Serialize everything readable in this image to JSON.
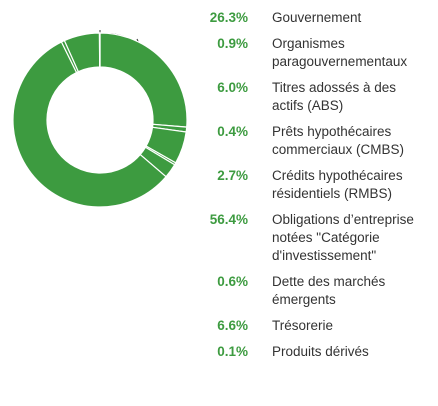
{
  "chart_data": {
    "type": "pie",
    "categories": [
      "Gouvernement",
      "Organismes paragouvernementaux",
      "Titres adossés à des actifs (ABS)",
      "Prêts hypothécaires commerciaux (CMBS)",
      "Crédits hypothécaires résidentiels (RMBS)",
      "Obligations d’entreprise notées \"Catégorie d'investissement\"",
      "Dette des marchés émergents",
      "Trésorerie",
      "Produits dérivés"
    ],
    "values": [
      26.3,
      0.9,
      6.0,
      0.4,
      2.7,
      56.4,
      0.6,
      6.6,
      0.1
    ],
    "value_labels": [
      "26.3%",
      "0.9%",
      "6.0%",
      "0.4%",
      "2.7%",
      "56.4%",
      "0.6%",
      "6.6%",
      "0.1%"
    ],
    "color": "#3d9b40"
  }
}
